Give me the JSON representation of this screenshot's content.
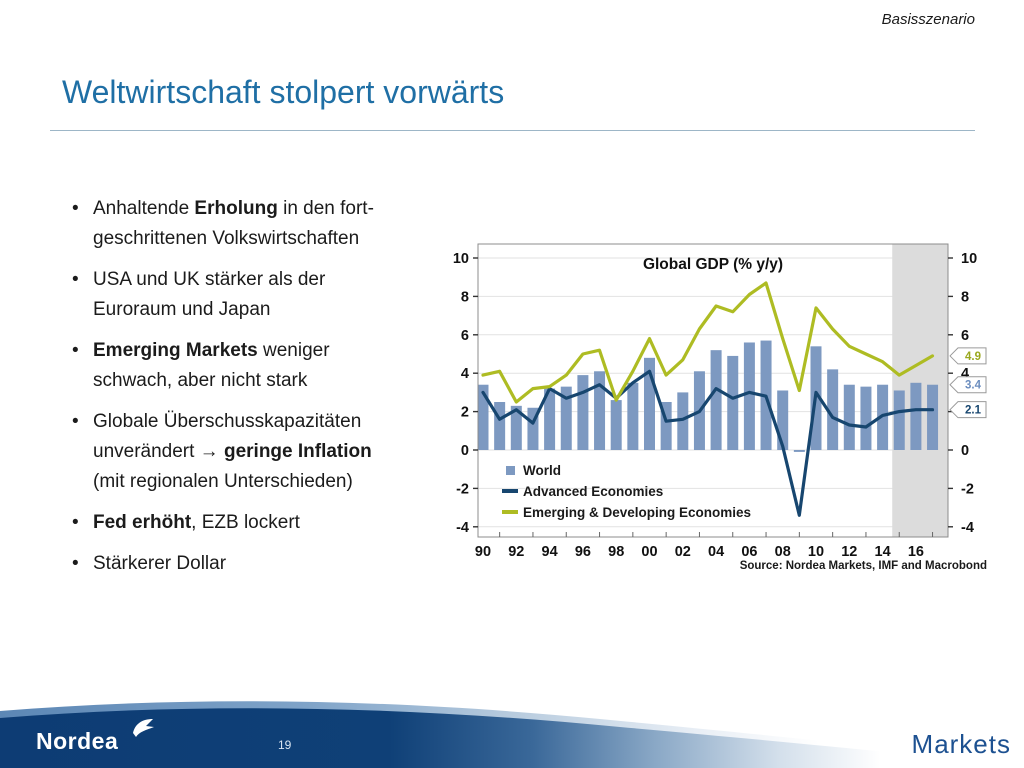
{
  "slide": {
    "scenario_label": "Basisszenario",
    "title": "Weltwirtschaft stolpert vorwärts",
    "page_number": "19",
    "brand": "Nordea",
    "brand_unit": "Markets"
  },
  "bullets": [
    {
      "segments": [
        {
          "text": "Anhaltende ",
          "bold": false
        },
        {
          "text": "Erholung",
          "bold": true
        },
        {
          "text": " in den fort-",
          "bold": false
        },
        {
          "break": true
        },
        {
          "text": "geschrittenen Volkswirtschaften",
          "bold": false
        }
      ]
    },
    {
      "segments": [
        {
          "text": "USA und UK stärker als der",
          "bold": false
        },
        {
          "break": true
        },
        {
          "text": "Euroraum und Japan",
          "bold": false
        }
      ]
    },
    {
      "segments": [
        {
          "text": "Emerging Markets",
          "bold": true
        },
        {
          "text": " weniger",
          "bold": false
        },
        {
          "break": true
        },
        {
          "text": "schwach, aber nicht stark",
          "bold": false
        }
      ]
    },
    {
      "segments": [
        {
          "text": "Globale Überschusskapazitäten",
          "bold": false
        },
        {
          "break": true
        },
        {
          "text": "unverändert → ",
          "bold": false
        },
        {
          "text": "geringe Inflation",
          "bold": true
        },
        {
          "break": true
        },
        {
          "text": "(mit regionalen Unterschieden)",
          "bold": false
        }
      ]
    },
    {
      "segments": [
        {
          "text": "Fed erhöht",
          "bold": true
        },
        {
          "text": ", EZB lockert",
          "bold": false
        }
      ]
    },
    {
      "segments": [
        {
          "text": "Stärkerer Dollar",
          "bold": false
        }
      ]
    }
  ],
  "chart_data": {
    "type": "bar",
    "title": "Global GDP (% y/y)",
    "source": "Source: Nordea Markets, IMF and Macrobond",
    "x": [
      1990,
      1991,
      1992,
      1993,
      1994,
      1995,
      1996,
      1997,
      1998,
      1999,
      2000,
      2001,
      2002,
      2003,
      2004,
      2005,
      2006,
      2007,
      2008,
      2009,
      2010,
      2011,
      2012,
      2013,
      2014,
      2015,
      2016,
      2017
    ],
    "x_tick_labels": [
      "90",
      "92",
      "94",
      "96",
      "98",
      "00",
      "02",
      "04",
      "06",
      "08",
      "10",
      "12",
      "14",
      "16"
    ],
    "ylim": [
      -4,
      10
    ],
    "yticks": [
      -4,
      -2,
      0,
      2,
      4,
      6,
      8,
      10
    ],
    "grid": true,
    "legend_position": "bottom-left-inside",
    "forecast_band_start_year": 2015,
    "series": [
      {
        "name": "World",
        "type": "bar",
        "color": "#7d99c1",
        "values": [
          3.4,
          2.5,
          2.3,
          2.2,
          3.2,
          3.3,
          3.9,
          4.1,
          2.6,
          3.5,
          4.8,
          2.5,
          3.0,
          4.1,
          5.2,
          4.9,
          5.6,
          5.7,
          3.1,
          -0.1,
          5.4,
          4.2,
          3.4,
          3.3,
          3.4,
          3.1,
          3.5,
          3.4
        ]
      },
      {
        "name": "Advanced Economies",
        "type": "line",
        "color": "#17466f",
        "values": [
          3.0,
          1.6,
          2.1,
          1.4,
          3.2,
          2.7,
          3.0,
          3.4,
          2.7,
          3.5,
          4.1,
          1.5,
          1.6,
          2.0,
          3.2,
          2.7,
          3.0,
          2.8,
          0.2,
          -3.4,
          3.0,
          1.7,
          1.3,
          1.2,
          1.8,
          2.0,
          2.1,
          2.1
        ]
      },
      {
        "name": "Emerging & Developing Economies",
        "type": "line",
        "color": "#aebc23",
        "values": [
          3.9,
          4.1,
          2.5,
          3.2,
          3.3,
          3.9,
          5.0,
          5.2,
          2.6,
          4.1,
          5.8,
          3.9,
          4.7,
          6.3,
          7.5,
          7.2,
          8.1,
          8.7,
          5.8,
          3.1,
          7.4,
          6.3,
          5.4,
          5.0,
          4.6,
          3.9,
          4.4,
          4.9
        ]
      }
    ],
    "end_labels": [
      {
        "value": "4.9",
        "at": 4.9,
        "color": "#9aa81e"
      },
      {
        "value": "3.4",
        "at": 3.4,
        "color": "#6c8ebf"
      },
      {
        "value": "2.1",
        "at": 2.1,
        "color": "#17466f"
      }
    ]
  },
  "colors": {
    "title_blue": "#1f6fa5",
    "footer_navy": "#0d3c74",
    "forecast_band": "#dcdcdc",
    "gridline": "#e2e2e2",
    "frame": "#8c8c8c",
    "tick_text": "#111111",
    "tag_border": "#9a9a9a"
  }
}
